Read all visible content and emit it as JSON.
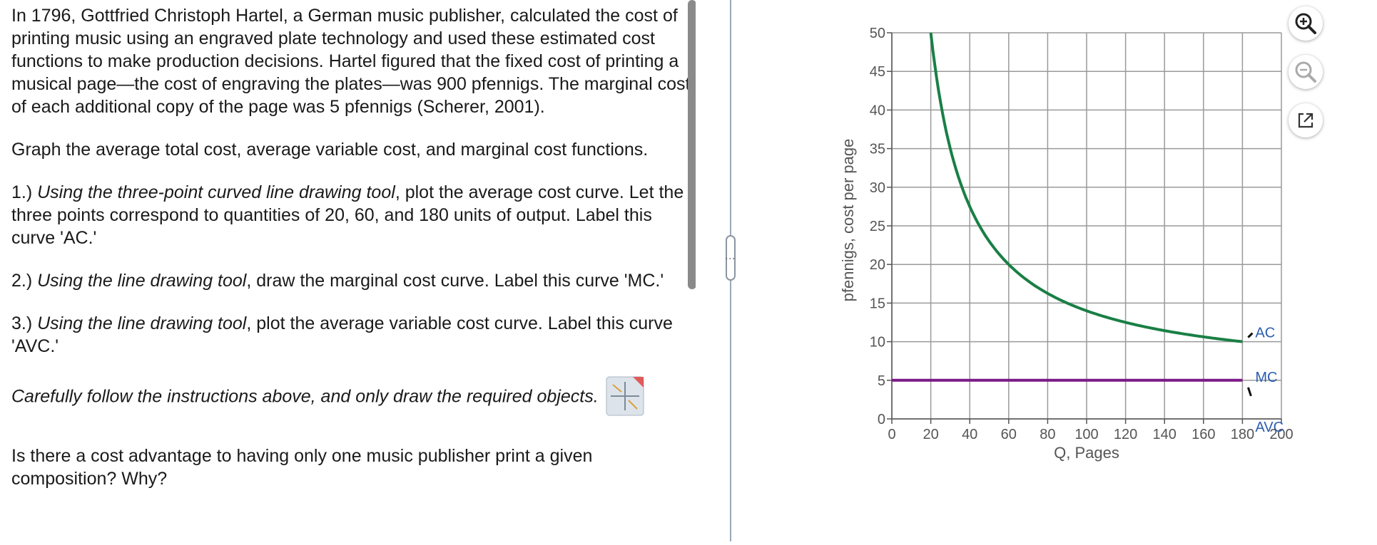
{
  "question": {
    "intro": "In 1796, Gottfried Christoph Hartel, a German music publisher, calculated the cost of printing music using an engraved plate technology and used these estimated cost functions to make production decisions.  Hartel figured that the fixed cost of printing a musical page—the cost of engraving the plates—was 900 pfennigs.  The marginal cost of each additional copy of the page was 5 pfennigs (Scherer, 2001).",
    "task": "Graph the average total cost, average variable cost, and marginal cost functions.",
    "step1_num": "1.) ",
    "step1_tool": "Using the three-point curved line drawing tool",
    "step1_rest": ", plot the average cost curve.  Let the three points correspond to quantities of 20, 60, and 180 units of output.  Label this curve 'AC.'",
    "step2_num": "2.) ",
    "step2_tool": "Using the line drawing tool",
    "step2_rest": ", draw the marginal cost curve.  Label this curve 'MC.'",
    "step3_num": "3.) ",
    "step3_tool": "Using the line drawing tool",
    "step3_rest": ", plot the average variable cost curve.  Label this curve 'AVC.'",
    "instruction": "Carefully follow the instructions above, and only draw the required objects.",
    "followup": "Is there a cost advantage to having only one music publisher print a given composition?  Why?"
  },
  "toolbar": {
    "zoom_in_icon": "zoom-in-icon",
    "zoom_out_icon": "zoom-out-icon",
    "popout_icon": "external-link-icon"
  },
  "colors": {
    "ac_curve": "#1a7f45",
    "mc_line": "#7b1a86",
    "label_blue": "#2a5db0",
    "grid": "#9a9a9a"
  },
  "chart_data": {
    "type": "line",
    "xlabel": "Q, Pages",
    "ylabel": "pfennigs, cost per page",
    "xlim": [
      0,
      200
    ],
    "ylim": [
      0,
      50
    ],
    "x_ticks": [
      0,
      20,
      40,
      60,
      80,
      100,
      120,
      140,
      160,
      180,
      200
    ],
    "y_ticks": [
      0,
      5,
      10,
      15,
      20,
      25,
      30,
      35,
      40,
      45,
      50
    ],
    "grid": true,
    "series": [
      {
        "name": "AC",
        "x": [
          20,
          25,
          30,
          40,
          50,
          60,
          80,
          100,
          120,
          140,
          160,
          180
        ],
        "y": [
          50,
          41,
          35,
          27.5,
          23,
          20,
          16.2,
          14,
          12.5,
          11.4,
          10.6,
          10
        ]
      },
      {
        "name": "MC",
        "x": [
          0,
          180
        ],
        "y": [
          5,
          5
        ]
      }
    ],
    "labels": [
      "AC",
      "MC",
      "AVC"
    ]
  }
}
